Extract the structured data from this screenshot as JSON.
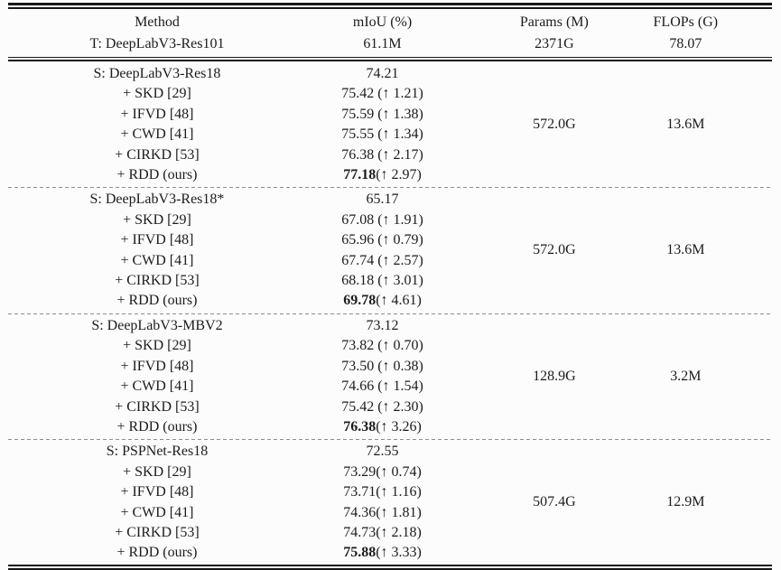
{
  "page": {
    "background": "#fcfcfc",
    "text_color": "#1c1c1c",
    "rule_color": "#161616",
    "dash_color": "#8e8e8e"
  },
  "table": {
    "columns": [
      "Method",
      "mIoU (%)",
      "Params (M)",
      "FLOPs (G)"
    ],
    "teacher": {
      "method": "T: DeepLabV3-Res101",
      "miou": "61.1M",
      "params": "2371G",
      "flops": "78.07"
    },
    "sections": [
      {
        "params": "572.0G",
        "flops": "13.6M",
        "rows": [
          {
            "method": "S: DeepLabV3-Res18",
            "miou": "74.21",
            "gain": "",
            "bold": false
          },
          {
            "method": "+ SKD [29]",
            "miou": "75.42",
            "gain": " (↑ 1.21)",
            "bold": false
          },
          {
            "method": "+ IFVD [48]",
            "miou": "75.59",
            "gain": " (↑ 1.38)",
            "bold": false
          },
          {
            "method": "+ CWD [41]",
            "miou": "75.55",
            "gain": " (↑ 1.34)",
            "bold": false
          },
          {
            "method": "+ CIRKD [53]",
            "miou": "76.38",
            "gain": " (↑ 2.17)",
            "bold": false
          },
          {
            "method": "+ RDD (ours)",
            "miou": "77.18",
            "gain": "(↑ 2.97)",
            "bold": true
          }
        ]
      },
      {
        "params": "572.0G",
        "flops": "13.6M",
        "rows": [
          {
            "method": "S: DeepLabV3-Res18*",
            "miou": "65.17",
            "gain": "",
            "bold": false
          },
          {
            "method": "+ SKD [29]",
            "miou": "67.08",
            "gain": " (↑ 1.91)",
            "bold": false
          },
          {
            "method": "+ IFVD [48]",
            "miou": "65.96",
            "gain": " (↑ 0.79)",
            "bold": false
          },
          {
            "method": "+ CWD [41]",
            "miou": "67.74",
            "gain": " (↑ 2.57)",
            "bold": false
          },
          {
            "method": "+ CIRKD [53]",
            "miou": "68.18",
            "gain": " (↑ 3.01)",
            "bold": false
          },
          {
            "method": "+ RDD (ours)",
            "miou": "69.78",
            "gain": "(↑ 4.61)",
            "bold": true
          }
        ]
      },
      {
        "params": "128.9G",
        "flops": "3.2M",
        "rows": [
          {
            "method": "S: DeepLabV3-MBV2",
            "miou": "73.12",
            "gain": "",
            "bold": false
          },
          {
            "method": "+ SKD [29]",
            "miou": "73.82",
            "gain": " (↑ 0.70)",
            "bold": false
          },
          {
            "method": "+ IFVD [48]",
            "miou": "73.50",
            "gain": " (↑ 0.38)",
            "bold": false
          },
          {
            "method": "+ CWD [41]",
            "miou": "74.66",
            "gain": " (↑ 1.54)",
            "bold": false
          },
          {
            "method": "+ CIRKD [53]",
            "miou": "75.42",
            "gain": " (↑ 2.30)",
            "bold": false
          },
          {
            "method": "+ RDD (ours)",
            "miou": "76.38",
            "gain": "(↑ 3.26)",
            "bold": true
          }
        ]
      },
      {
        "params": "507.4G",
        "flops": "12.9M",
        "rows": [
          {
            "method": "S: PSPNet-Res18",
            "miou": "72.55",
            "gain": "",
            "bold": false
          },
          {
            "method": "+ SKD [29]",
            "miou": "73.29",
            "gain": "(↑ 0.74)",
            "bold": false
          },
          {
            "method": "+ IFVD [48]",
            "miou": "73.71",
            "gain": "(↑ 1.16)",
            "bold": false
          },
          {
            "method": "+ CWD [41]",
            "miou": "74.36",
            "gain": "(↑ 1.81)",
            "bold": false
          },
          {
            "method": "+ CIRKD [53]",
            "miou": "74.73",
            "gain": "(↑ 2.18)",
            "bold": false
          },
          {
            "method": "+ RDD (ours)",
            "miou": "75.88",
            "gain": "(↑ 3.33)",
            "bold": true
          }
        ]
      }
    ]
  }
}
